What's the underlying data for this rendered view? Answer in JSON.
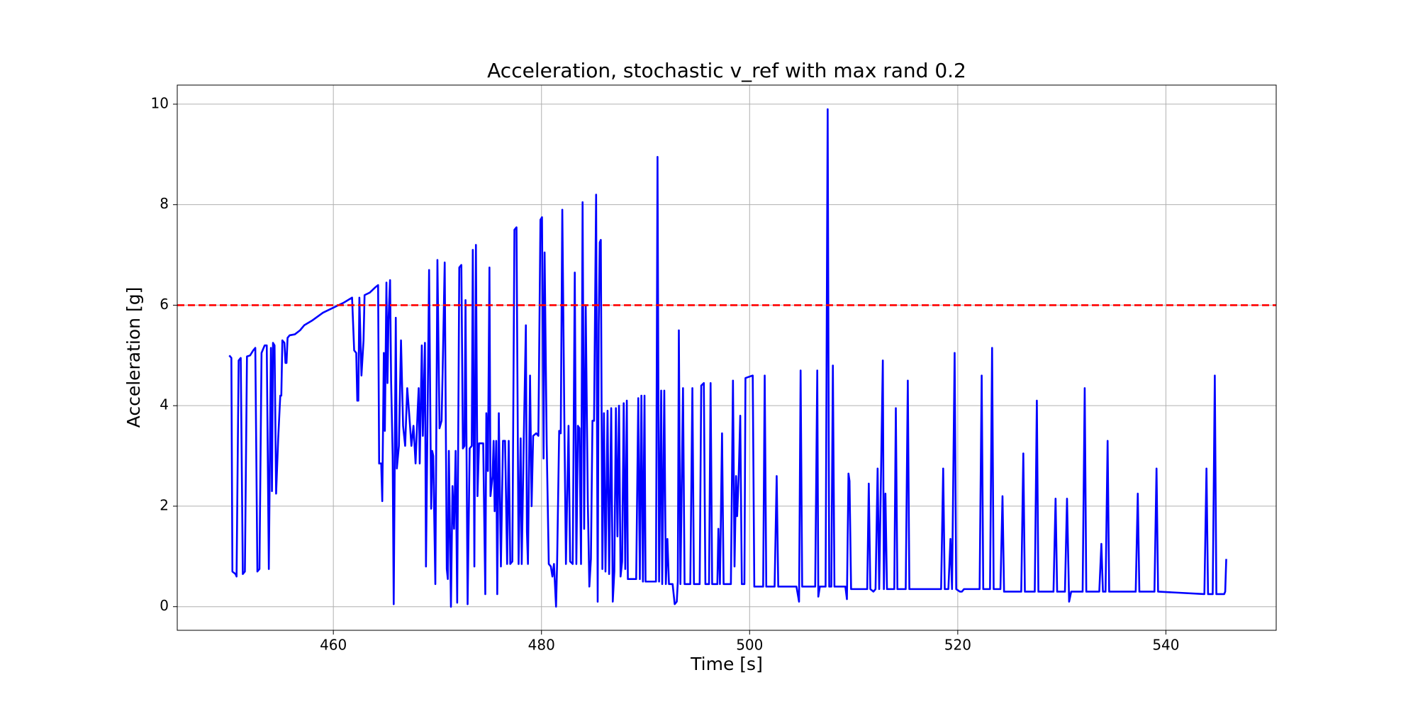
{
  "chart_data": {
    "type": "line",
    "title": "Acceleration, stochastic v_ref with max rand 0.2",
    "x_label": "Time [s]",
    "y_label": "Acceleration [g]",
    "xlim": [
      445.0,
      550.6
    ],
    "ylim": [
      -0.47,
      10.38
    ],
    "xticks": [
      460,
      480,
      500,
      520,
      540
    ],
    "yticks": [
      0,
      2,
      4,
      6,
      8,
      10
    ],
    "grid": true,
    "threshold": {
      "value": 6,
      "color": "#ff0000",
      "style": "dashed"
    },
    "x": [
      450.0,
      450.2,
      450.3,
      450.6,
      450.7,
      450.9,
      451.1,
      451.3,
      451.5,
      451.7,
      452.0,
      452.3,
      452.5,
      452.7,
      452.9,
      453.1,
      453.4,
      453.6,
      453.8,
      454.0,
      454.1,
      454.2,
      454.35,
      454.5,
      454.7,
      454.9,
      455.0,
      455.1,
      455.3,
      455.4,
      455.5,
      455.6,
      455.8,
      456.3,
      456.8,
      457.2,
      458,
      459,
      460,
      461,
      461.8,
      462.0,
      462.2,
      462.3,
      462.4,
      462.5,
      462.7,
      462.9,
      463.0,
      463.5,
      464.0,
      464.3,
      464.4,
      464.6,
      464.7,
      464.85,
      464.95,
      465.1,
      465.2,
      465.3,
      465.45,
      465.55,
      465.7,
      465.8,
      466.0,
      466.1,
      466.3,
      466.5,
      466.7,
      466.9,
      467.1,
      467.3,
      467.5,
      467.7,
      467.9,
      468.1,
      468.2,
      468.3,
      468.5,
      468.6,
      468.8,
      468.9,
      469.2,
      469.4,
      469.5,
      469.6,
      469.8,
      470.0,
      470.2,
      470.4,
      470.5,
      470.7,
      470.9,
      471.0,
      471.1,
      471.3,
      471.45,
      471.6,
      471.75,
      471.9,
      472.1,
      472.3,
      472.45,
      472.6,
      472.7,
      472.9,
      473.1,
      473.3,
      473.4,
      473.55,
      473.7,
      473.85,
      474.0,
      474.4,
      474.6,
      474.7,
      474.85,
      475.0,
      475.1,
      475.3,
      475.4,
      475.5,
      475.65,
      475.75,
      475.9,
      476.1,
      476.3,
      476.5,
      476.7,
      476.85,
      477.0,
      477.2,
      477.4,
      477.6,
      477.8,
      478.0,
      478.1,
      478.3,
      478.5,
      478.6,
      478.7,
      478.9,
      479.05,
      479.2,
      479.5,
      479.7,
      479.9,
      480.05,
      480.2,
      480.3,
      480.5,
      480.7,
      480.9,
      481.05,
      481.2,
      481.4,
      481.5,
      481.7,
      481.85,
      482.0,
      482.2,
      482.35,
      482.6,
      482.75,
      483.0,
      483.2,
      483.35,
      483.5,
      483.65,
      483.8,
      483.95,
      484.1,
      484.25,
      484.45,
      484.6,
      484.75,
      484.9,
      485.05,
      485.25,
      485.4,
      485.5,
      485.6,
      485.7,
      485.85,
      486.0,
      486.15,
      486.35,
      486.5,
      486.7,
      486.85,
      487.0,
      487.15,
      487.3,
      487.45,
      487.6,
      487.75,
      487.9,
      488.05,
      488.2,
      488.3,
      489.1,
      489.3,
      489.45,
      489.6,
      489.75,
      489.9,
      490.0,
      491.0,
      491.15,
      491.3,
      491.5,
      491.6,
      491.8,
      491.95,
      492.1,
      492.25,
      492.6,
      492.8,
      493.0,
      493.1,
      493.2,
      493.35,
      493.6,
      493.75,
      494.3,
      494.5,
      494.65,
      495.2,
      495.35,
      495.6,
      495.75,
      496.1,
      496.25,
      496.4,
      496.9,
      497.0,
      497.15,
      497.35,
      497.5,
      498.2,
      498.4,
      498.55,
      498.7,
      498.8,
      498.95,
      499.1,
      499.25,
      499.5,
      499.6,
      500.3,
      500.45,
      501.3,
      501.45,
      501.6,
      502.4,
      502.6,
      502.75,
      504.5,
      504.75,
      504.9,
      505.05,
      506.3,
      506.5,
      506.6,
      506.75,
      507.3,
      507.5,
      507.65,
      507.85,
      508.0,
      508.15,
      509.2,
      509.35,
      509.5,
      509.6,
      509.75,
      511.3,
      511.45,
      511.6,
      511.9,
      512.1,
      512.3,
      512.45,
      512.8,
      512.9,
      513.05,
      513.2,
      513.9,
      514.05,
      514.2,
      515.0,
      515.2,
      515.35,
      518.4,
      518.6,
      518.75,
      519.1,
      519.3,
      519.45,
      519.7,
      519.85,
      520.2,
      520.4,
      520.6,
      522.1,
      522.3,
      522.45,
      523.1,
      523.3,
      523.45,
      524.1,
      524.3,
      524.45,
      526.1,
      526.3,
      526.45,
      527.4,
      527.6,
      527.75,
      529.2,
      529.4,
      529.55,
      530.3,
      530.5,
      530.7,
      530.9,
      532.0,
      532.2,
      532.35,
      533.6,
      533.8,
      533.95,
      534.2,
      534.4,
      534.55,
      537.1,
      537.3,
      537.45,
      538.9,
      539.1,
      539.25,
      543.7,
      543.9,
      544.05,
      544.5,
      544.7,
      544.85,
      545.6,
      545.7,
      545.8
    ],
    "series": [
      {
        "color": "#0000ff",
        "values": [
          5.0,
          4.95,
          0.7,
          0.65,
          0.6,
          4.9,
          4.95,
          0.65,
          0.7,
          4.98,
          5.0,
          5.1,
          5.15,
          0.7,
          0.75,
          5.05,
          5.2,
          5.2,
          0.75,
          5.15,
          2.3,
          5.25,
          5.2,
          2.25,
          3.35,
          4.2,
          4.2,
          5.3,
          5.25,
          4.85,
          4.85,
          5.35,
          5.4,
          5.42,
          5.5,
          5.6,
          5.7,
          5.85,
          5.95,
          6.05,
          6.15,
          5.1,
          5.05,
          4.1,
          4.1,
          6.15,
          4.6,
          5.3,
          6.2,
          6.25,
          6.35,
          6.4,
          2.85,
          2.85,
          2.1,
          5.05,
          3.5,
          6.45,
          4.45,
          5.7,
          6.5,
          4.5,
          3.0,
          0.05,
          5.75,
          2.75,
          3.2,
          5.3,
          3.6,
          3.2,
          4.35,
          3.8,
          3.2,
          3.6,
          2.85,
          3.9,
          4.35,
          2.85,
          5.2,
          3.4,
          5.25,
          0.8,
          6.7,
          1.95,
          3.1,
          3.0,
          0.45,
          6.9,
          3.55,
          3.7,
          4.65,
          6.85,
          0.75,
          0.55,
          3.1,
          0.0,
          2.4,
          1.55,
          3.1,
          0.08,
          6.75,
          6.8,
          3.15,
          3.2,
          6.1,
          0.05,
          3.15,
          3.2,
          7.1,
          0.8,
          7.2,
          2.2,
          3.25,
          3.25,
          0.25,
          3.85,
          2.7,
          6.75,
          2.2,
          2.6,
          3.3,
          1.9,
          3.3,
          0.25,
          3.85,
          0.8,
          3.3,
          3.3,
          0.85,
          3.3,
          0.85,
          0.9,
          7.5,
          7.55,
          0.85,
          3.35,
          0.85,
          3.35,
          5.6,
          1.5,
          0.85,
          4.6,
          2.0,
          3.4,
          3.45,
          3.4,
          7.7,
          7.75,
          2.95,
          7.05,
          3.25,
          0.85,
          0.8,
          0.6,
          0.85,
          0.0,
          0.85,
          3.5,
          3.45,
          7.9,
          3.65,
          0.85,
          3.6,
          0.9,
          0.85,
          6.65,
          0.85,
          3.6,
          3.55,
          0.85,
          8.05,
          1.55,
          6.0,
          2.1,
          0.4,
          0.95,
          3.7,
          3.7,
          8.2,
          0.1,
          5.6,
          7.25,
          7.3,
          0.75,
          3.85,
          0.7,
          3.9,
          0.65,
          3.95,
          0.1,
          0.7,
          3.95,
          1.4,
          4.0,
          0.6,
          0.9,
          4.05,
          0.75,
          4.1,
          0.55,
          0.55,
          4.15,
          0.55,
          4.2,
          0.5,
          4.2,
          0.5,
          0.5,
          8.95,
          0.5,
          4.3,
          0.45,
          4.3,
          0.45,
          1.35,
          0.45,
          0.45,
          0.05,
          0.1,
          0.5,
          5.5,
          0.45,
          4.35,
          0.45,
          0.45,
          4.35,
          0.45,
          0.45,
          4.4,
          4.45,
          0.45,
          0.45,
          4.45,
          0.45,
          0.45,
          1.55,
          0.45,
          3.45,
          0.45,
          0.45,
          4.5,
          0.8,
          2.6,
          1.8,
          2.6,
          3.8,
          0.45,
          0.45,
          4.55,
          4.6,
          0.4,
          0.4,
          4.6,
          0.4,
          0.4,
          2.6,
          0.4,
          0.4,
          0.1,
          4.7,
          0.4,
          0.4,
          4.7,
          0.2,
          0.4,
          0.4,
          9.9,
          0.4,
          0.4,
          4.8,
          0.4,
          0.4,
          0.15,
          2.65,
          2.5,
          0.35,
          0.35,
          2.45,
          0.35,
          0.3,
          0.35,
          2.75,
          0.35,
          4.9,
          0.35,
          2.25,
          0.35,
          0.35,
          3.95,
          0.35,
          0.35,
          4.5,
          0.35,
          0.35,
          2.75,
          0.35,
          0.35,
          1.35,
          0.35,
          5.05,
          0.35,
          0.3,
          0.3,
          0.35,
          0.35,
          4.6,
          0.35,
          0.35,
          5.15,
          0.35,
          0.35,
          2.2,
          0.3,
          0.3,
          3.05,
          0.3,
          0.3,
          4.1,
          0.3,
          0.3,
          2.15,
          0.3,
          0.3,
          2.15,
          0.1,
          0.3,
          0.3,
          4.35,
          0.3,
          0.3,
          1.25,
          0.3,
          0.3,
          3.3,
          0.3,
          0.3,
          2.25,
          0.3,
          0.3,
          2.75,
          0.3,
          0.25,
          2.75,
          0.25,
          0.25,
          4.6,
          0.25,
          0.25,
          0.3,
          0.95
        ]
      }
    ]
  }
}
